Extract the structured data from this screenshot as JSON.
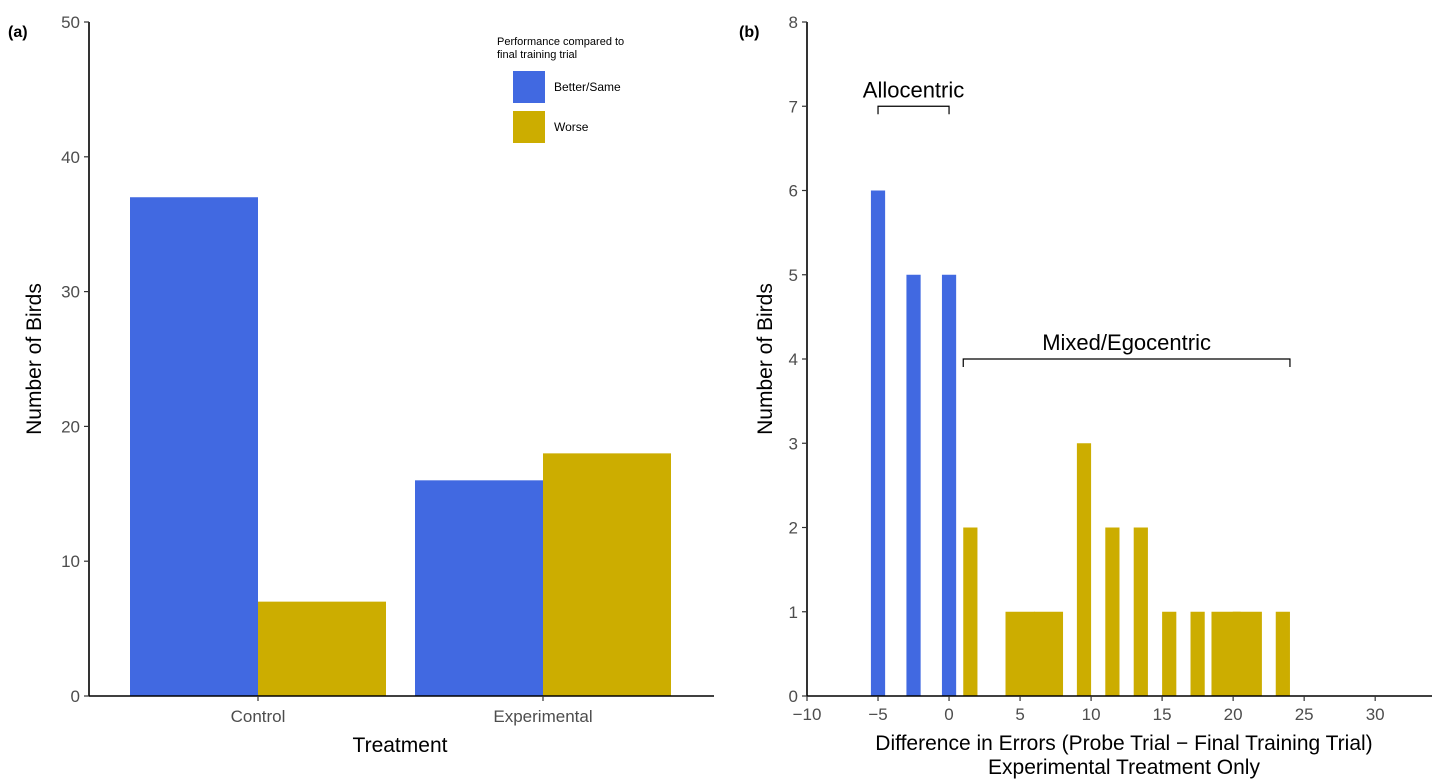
{
  "chart_data": [
    {
      "panel_label": "(a)",
      "type": "bar",
      "xlabel": "Treatment",
      "ylabel": "Number of Birds",
      "ylim": [
        0,
        50
      ],
      "yticks": [
        "0",
        "10",
        "20",
        "30",
        "40",
        "50"
      ],
      "categories": [
        "Control",
        "Experimental"
      ],
      "legend": {
        "title_lines": [
          "Performance compared to",
          "final training trial"
        ],
        "placement": "top-right"
      },
      "series": [
        {
          "name": "Better/Same",
          "color": "#4169E1",
          "values": [
            37,
            16
          ]
        },
        {
          "name": "Worse",
          "color": "#CCAD00",
          "values": [
            7,
            18
          ]
        }
      ],
      "grid": false
    },
    {
      "panel_label": "(b)",
      "type": "bar",
      "xlabel_lines": [
        "Difference in Errors (Probe Trial − Final Training Trial)",
        "Experimental Treatment Only"
      ],
      "ylabel": "Number of Birds",
      "xlim": [
        -10,
        34
      ],
      "ylim": [
        0,
        8
      ],
      "xticks": [
        "−10",
        "−5",
        "0",
        "5",
        "10",
        "15",
        "20",
        "25",
        "30"
      ],
      "xtick_values": [
        -10,
        -5,
        0,
        5,
        10,
        15,
        20,
        25,
        30
      ],
      "yticks": [
        "0",
        "1",
        "2",
        "3",
        "4",
        "5",
        "6",
        "7",
        "8"
      ],
      "series": [
        {
          "name": "Allocentric",
          "color": "#4169E1",
          "x": [
            -5,
            -2.5,
            0
          ],
          "values": [
            6,
            5,
            5
          ]
        },
        {
          "name": "Mixed/Egocentric",
          "color": "#CCAD00",
          "x": [
            1.5,
            5,
            7,
            9.5,
            11.5,
            13.5,
            15.5,
            17.5,
            19.5,
            21,
            23.5
          ],
          "values": [
            2,
            1,
            1,
            3,
            2,
            2,
            1,
            1,
            1,
            1,
            1
          ]
        }
      ],
      "annotations": [
        {
          "text": "Allocentric",
          "x_from": -5,
          "x_to": 0,
          "y": 7
        },
        {
          "text": "Mixed/Egocentric",
          "x_from": 1,
          "x_to": 24,
          "y": 4
        }
      ],
      "grid": false
    }
  ]
}
